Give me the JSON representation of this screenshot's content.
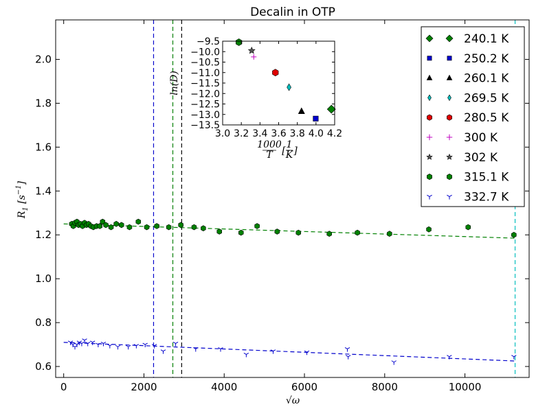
{
  "chart_data": [
    {
      "type": "scatter",
      "title": "Decalin in OTP",
      "xlabel": "√ω",
      "ylabel": "R₁ [s⁻¹]",
      "xlim": [
        -200,
        11600
      ],
      "ylim": [
        0.55,
        2.18
      ],
      "xticks": [
        0,
        2000,
        4000,
        6000,
        8000,
        10000
      ],
      "yticks": [
        0.6,
        0.8,
        1.0,
        1.2,
        1.4,
        1.6,
        1.8,
        2.0
      ],
      "xtick_labels": [
        "0",
        "2000",
        "4000",
        "6000",
        "8000",
        "10000"
      ],
      "ytick_labels": [
        "0.6",
        "0.8",
        "1.0",
        "1.2",
        "1.4",
        "1.6",
        "1.8",
        "2.0"
      ],
      "grid": false,
      "legend_position": "top-right",
      "legend": [
        {
          "label": "240.1 K",
          "marker": "diamond",
          "color": "#008000"
        },
        {
          "label": "250.2 K",
          "marker": "square",
          "color": "#0000cc"
        },
        {
          "label": "260.1 K",
          "marker": "triangle",
          "color": "#000000"
        },
        {
          "label": "269.5 K",
          "marker": "thin-diamond",
          "color": "#00bfbf"
        },
        {
          "label": "280.5 K",
          "marker": "hexagon",
          "color": "#e00000"
        },
        {
          "label": "300 K",
          "marker": "plus",
          "color": "#bf00bf"
        },
        {
          "label": "302 K",
          "marker": "star",
          "color": "#555555"
        },
        {
          "label": "315.1 K",
          "marker": "hexagon",
          "color": "#008000"
        },
        {
          "label": "332.7 K",
          "marker": "tri-down",
          "color": "#0000cc"
        }
      ],
      "series": [
        {
          "name": "315.1 K",
          "marker": "hexagon",
          "color": "#008000",
          "points": [
            [
              200,
              1.25
            ],
            [
              240,
              1.24
            ],
            [
              280,
              1.255
            ],
            [
              330,
              1.26
            ],
            [
              370,
              1.245
            ],
            [
              420,
              1.25
            ],
            [
              470,
              1.24
            ],
            [
              520,
              1.255
            ],
            [
              570,
              1.245
            ],
            [
              620,
              1.25
            ],
            [
              680,
              1.24
            ],
            [
              740,
              1.235
            ],
            [
              820,
              1.24
            ],
            [
              900,
              1.24
            ],
            [
              970,
              1.26
            ],
            [
              1050,
              1.245
            ],
            [
              1180,
              1.235
            ],
            [
              1310,
              1.25
            ],
            [
              1440,
              1.245
            ],
            [
              1640,
              1.235
            ],
            [
              1860,
              1.26
            ],
            [
              2070,
              1.235
            ],
            [
              2320,
              1.24
            ],
            [
              2620,
              1.235
            ],
            [
              2920,
              1.245
            ],
            [
              3250,
              1.235
            ],
            [
              3480,
              1.23
            ],
            [
              3880,
              1.215
            ],
            [
              4420,
              1.21
            ],
            [
              4820,
              1.24
            ],
            [
              5320,
              1.215
            ],
            [
              5850,
              1.21
            ],
            [
              6620,
              1.205
            ],
            [
              7320,
              1.21
            ],
            [
              8120,
              1.205
            ],
            [
              9100,
              1.225
            ],
            [
              10080,
              1.235
            ],
            [
              11220,
              1.2
            ]
          ],
          "fit": [
            [
              0,
              1.25
            ],
            [
              11250,
              1.185
            ]
          ]
        },
        {
          "name": "332.7 K",
          "marker": "tri-down",
          "color": "#0000cc",
          "points": [
            [
              170,
              0.71
            ],
            [
              230,
              0.7
            ],
            [
              280,
              0.69
            ],
            [
              330,
              0.7
            ],
            [
              390,
              0.71
            ],
            [
              450,
              0.705
            ],
            [
              520,
              0.72
            ],
            [
              600,
              0.705
            ],
            [
              720,
              0.71
            ],
            [
              860,
              0.7
            ],
            [
              990,
              0.705
            ],
            [
              1150,
              0.695
            ],
            [
              1350,
              0.69
            ],
            [
              1610,
              0.69
            ],
            [
              1810,
              0.695
            ],
            [
              2030,
              0.7
            ],
            [
              2260,
              0.695
            ],
            [
              2480,
              0.67
            ],
            [
              2790,
              0.705
            ],
            [
              3290,
              0.68
            ],
            [
              3910,
              0.68
            ],
            [
              4550,
              0.655
            ],
            [
              5220,
              0.67
            ],
            [
              6060,
              0.665
            ],
            [
              7070,
              0.68
            ],
            [
              7090,
              0.645
            ],
            [
              8230,
              0.62
            ],
            [
              9610,
              0.645
            ],
            [
              11220,
              0.645
            ]
          ],
          "fit": [
            [
              0,
              0.71
            ],
            [
              11250,
              0.625
            ]
          ]
        }
      ],
      "vlines": [
        {
          "x": 2240,
          "color": "#0000cc",
          "style": "dashed"
        },
        {
          "x": 2720,
          "color": "#008000",
          "style": "dashed"
        },
        {
          "x": 2940,
          "color": "#000000",
          "style": "dashed"
        },
        {
          "x": 11250,
          "color": "#00bfbf",
          "style": "dashed"
        }
      ]
    },
    {
      "type": "scatter",
      "title": "",
      "xlabel": "1000/T [1/K]",
      "ylabel": "ln(D)",
      "xlim": [
        3.0,
        4.2
      ],
      "ylim": [
        -13.5,
        -9.5
      ],
      "xticks": [
        3.0,
        3.2,
        3.4,
        3.6,
        3.8,
        4.0,
        4.2
      ],
      "yticks": [
        -9.5,
        -10.0,
        -10.5,
        -11.0,
        -11.5,
        -12.0,
        -12.5,
        -13.0,
        -13.5
      ],
      "xtick_labels": [
        "3.0",
        "3.2",
        "3.4",
        "3.6",
        "3.8",
        "4.0",
        "4.2"
      ],
      "ytick_labels": [
        "−9.5",
        "−10.0",
        "−10.5",
        "−11.0",
        "−11.5",
        "−12.0",
        "−12.5",
        "−13.0",
        "−13.5"
      ],
      "points": [
        {
          "x": 4.165,
          "y": -12.75,
          "marker": "diamond",
          "color": "#008000",
          "series": "240.1 K"
        },
        {
          "x": 3.997,
          "y": -13.2,
          "marker": "square",
          "color": "#0000cc",
          "series": "250.2 K"
        },
        {
          "x": 3.845,
          "y": -12.85,
          "marker": "triangle",
          "color": "#000000",
          "series": "260.1 K"
        },
        {
          "x": 3.711,
          "y": -11.7,
          "marker": "thin-diamond",
          "color": "#00bfbf",
          "series": "269.5 K"
        },
        {
          "x": 3.565,
          "y": -11.0,
          "marker": "hexagon",
          "color": "#e00000",
          "series": "280.5 K"
        },
        {
          "x": 3.333,
          "y": -10.25,
          "marker": "plus",
          "color": "#bf00bf",
          "series": "300 K"
        },
        {
          "x": 3.311,
          "y": -9.95,
          "marker": "star",
          "color": "#555555",
          "series": "302 K"
        },
        {
          "x": 3.174,
          "y": -9.55,
          "marker": "hexagon",
          "color": "#008000",
          "series": "315.1 K"
        }
      ]
    }
  ]
}
